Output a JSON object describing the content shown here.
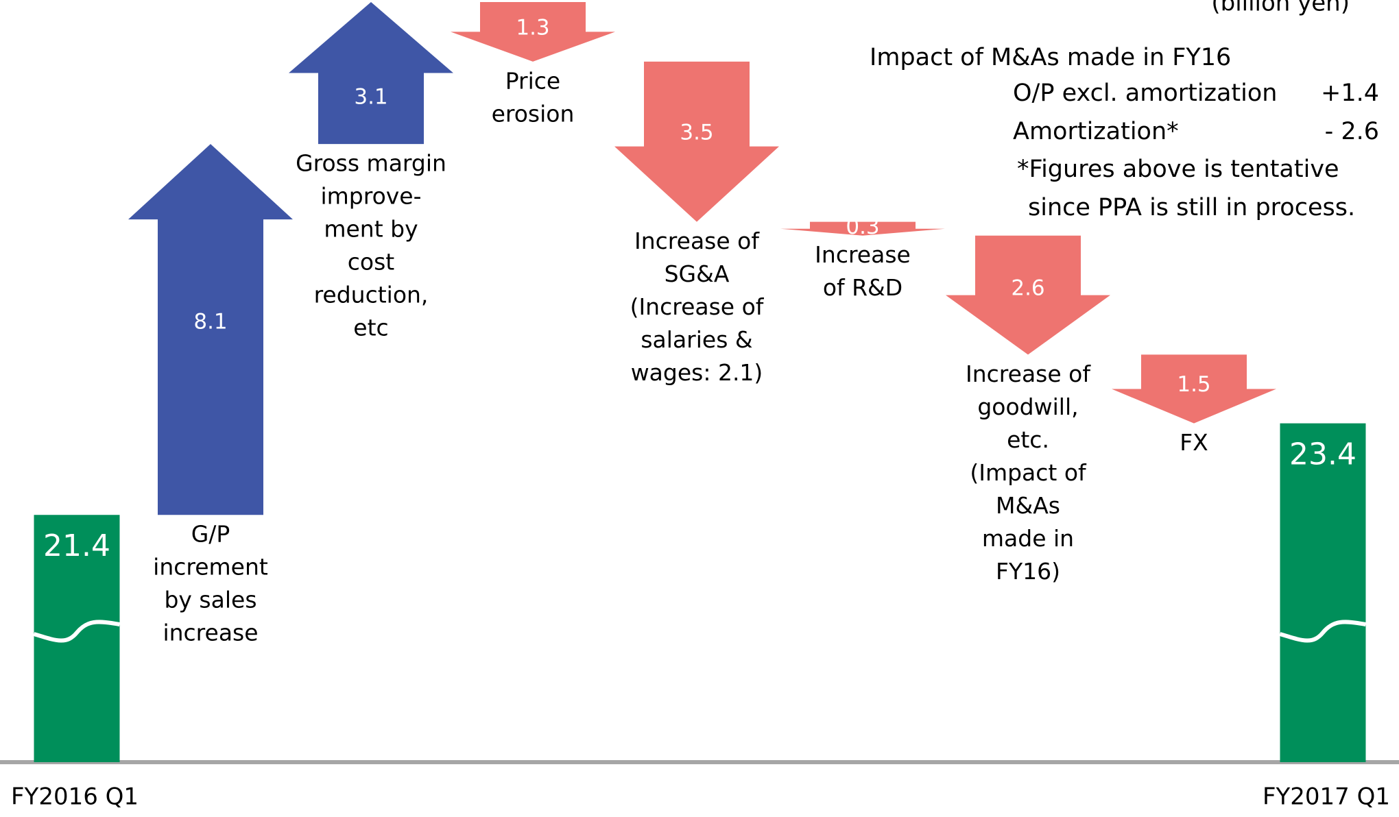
{
  "chart_data": {
    "type": "waterfall",
    "unit_label": "(billion yen)",
    "categories": [
      [
        "FY2016 Q1"
      ],
      [
        "G/P",
        "increment",
        "by sales",
        "increase"
      ],
      [
        "Gross margin",
        "improve-",
        "ment by",
        "cost",
        "reduction,",
        "etc"
      ],
      [
        "Price",
        "erosion"
      ],
      [
        "Increase of",
        "SG&A",
        "(Increase of",
        "salaries &",
        "wages: 2.1)"
      ],
      [
        "Increase",
        "of R&D"
      ],
      [
        "Increase of",
        "goodwill,",
        "etc.",
        "(Impact of",
        "M&As",
        "made in",
        "FY16)"
      ],
      [
        "FX"
      ],
      [
        "FY2017 Q1"
      ]
    ],
    "values": [
      21.4,
      8.1,
      3.1,
      1.3,
      3.5,
      0.3,
      2.6,
      1.5,
      23.4
    ],
    "kinds": [
      "total",
      "increase",
      "increase",
      "decrease",
      "decrease",
      "decrease",
      "decrease",
      "decrease",
      "total"
    ],
    "colors": {
      "total": "#008f5a",
      "increase": "#3f56a6",
      "decrease": "#ee7470"
    },
    "ylim": [
      16,
      32.6
    ],
    "annotations": {
      "title": "Impact of M&As made in FY16",
      "rows": [
        {
          "label": "O/P excl. amortization",
          "value": "+1.4"
        },
        {
          "label": "Amortization*",
          "value": "- 2.6"
        }
      ],
      "footnote": [
        "*Figures above is tentative",
        "since PPA is still in process."
      ]
    }
  }
}
